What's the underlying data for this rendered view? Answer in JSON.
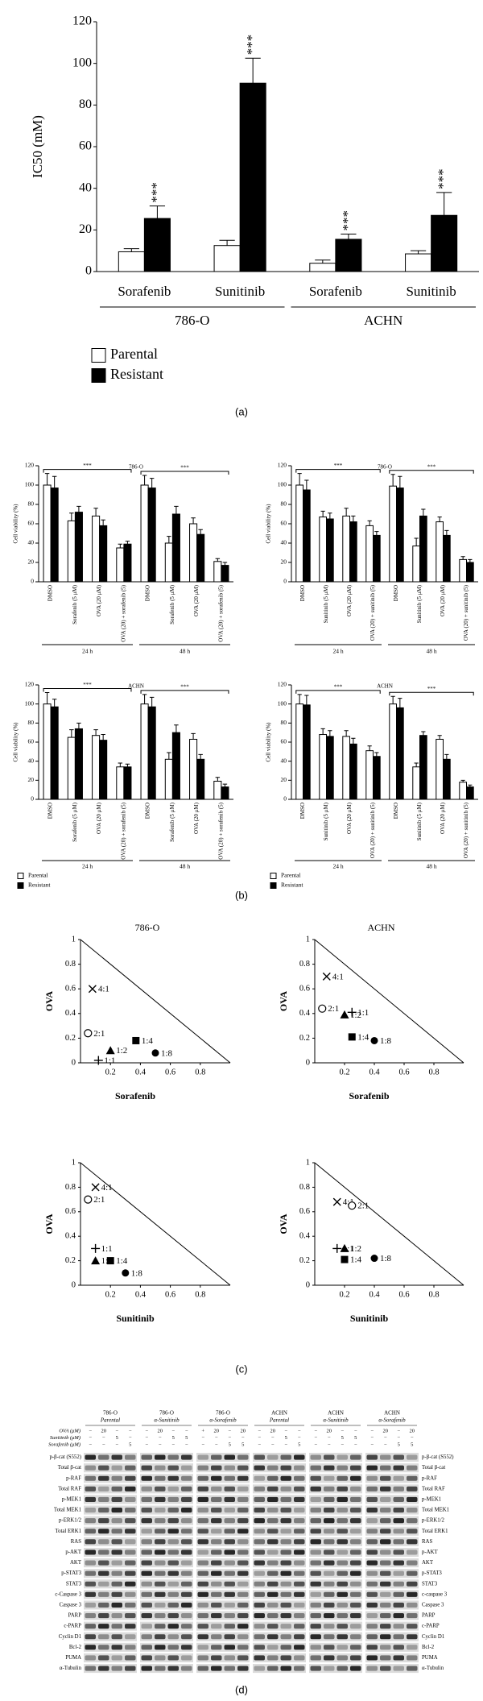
{
  "panel_labels": [
    "(a)",
    "(b)",
    "(c)",
    "(d)"
  ],
  "chart_data": [
    {
      "type": "bar",
      "ylabel": "IC50 (mM)",
      "ylim": [
        0,
        120
      ],
      "yticks": [
        0,
        20,
        40,
        60,
        80,
        100,
        120
      ],
      "categories": [
        "Sorafenib",
        "Sunitinib",
        "Sorafenib",
        "Sunitinib"
      ],
      "group_labels": [
        "786-O",
        "ACHN"
      ],
      "legend": true,
      "series": [
        {
          "name": "Parental",
          "color": "#ffffff",
          "values": [
            9.5,
            12.5,
            4,
            8.5
          ],
          "errors": [
            1.5,
            2.5,
            1.5,
            1.5
          ]
        },
        {
          "name": "Resistant",
          "color": "#000000",
          "values": [
            25.5,
            90.5,
            15.5,
            27
          ],
          "errors": [
            6,
            12,
            2.5,
            11
          ],
          "significance": [
            "***",
            "***",
            "***",
            "***"
          ]
        }
      ]
    },
    {
      "type": "bar",
      "title": "786-O",
      "ylabel": "Cell viability (%)",
      "ylim": [
        0,
        120
      ],
      "yticks": [
        0,
        20,
        40,
        60,
        80,
        100,
        120
      ],
      "categories": [
        "DMSO",
        "Sorafenib (5 μM)",
        "OVA (20 μM)",
        "OVA (20) + sorafenib (5)",
        "DMSO",
        "Sorafenib (5 μM)",
        "OVA (20 μM)",
        "OVA (20) + sorafenib (5)"
      ],
      "group_labels": [
        "24 h",
        "48 h"
      ],
      "comparisons": [
        "***",
        "***"
      ],
      "legend": false,
      "series": [
        {
          "name": "Parental",
          "color": "#ffffff",
          "values": [
            100,
            63,
            68,
            35,
            100,
            40,
            60,
            21
          ],
          "errors": [
            12,
            8,
            8,
            4,
            10,
            7,
            6,
            3
          ]
        },
        {
          "name": "Resistant",
          "color": "#000000",
          "values": [
            97,
            72,
            58,
            39,
            97,
            70,
            49,
            17
          ],
          "errors": [
            12,
            6,
            6,
            3,
            10,
            8,
            5,
            3
          ]
        }
      ]
    },
    {
      "type": "bar",
      "title": "786-O",
      "ylabel": "Cell viability (%)",
      "ylim": [
        0,
        120
      ],
      "yticks": [
        0,
        20,
        40,
        60,
        80,
        100,
        120
      ],
      "categories": [
        "DMSO",
        "Sunitinib (5 μM)",
        "OVA (20 μM)",
        "OVA (20) + sunitinib (5)",
        "DMSO",
        "Sunitinib (5 μM)",
        "OVA (20 μM)",
        "OVA (20) + sunitinib (5)"
      ],
      "group_labels": [
        "24 h",
        "48 h"
      ],
      "comparisons": [
        "***",
        "***"
      ],
      "legend": false,
      "series": [
        {
          "name": "Parental",
          "color": "#ffffff",
          "values": [
            100,
            67,
            68,
            58,
            99,
            37,
            62,
            23
          ],
          "errors": [
            12,
            6,
            8,
            5,
            12,
            8,
            5,
            3
          ]
        },
        {
          "name": "Resistant",
          "color": "#000000",
          "values": [
            95,
            65,
            62,
            48,
            97,
            68,
            48,
            20
          ],
          "errors": [
            10,
            6,
            6,
            4,
            12,
            7,
            5,
            3
          ]
        }
      ]
    },
    {
      "type": "bar",
      "title": "ACHN",
      "ylabel": "Cell viability (%)",
      "ylim": [
        0,
        120
      ],
      "yticks": [
        0,
        20,
        40,
        60,
        80,
        100,
        120
      ],
      "categories": [
        "DMSO",
        "Sorafenib (5 μM)",
        "OVA (20 μM)",
        "OVA (20) + sorafenib (5)",
        "DMSO",
        "Sorafenib (5 μM)",
        "OVA (20 μM)",
        "OVA (20) + sorafenib (5)"
      ],
      "group_labels": [
        "24 h",
        "48 h"
      ],
      "comparisons": [
        "***",
        "***"
      ],
      "legend": true,
      "series": [
        {
          "name": "Parental",
          "color": "#ffffff",
          "values": [
            100,
            65,
            67,
            34,
            100,
            42,
            63,
            19
          ],
          "errors": [
            12,
            8,
            6,
            4,
            10,
            7,
            6,
            4
          ]
        },
        {
          "name": "Resistant",
          "color": "#000000",
          "values": [
            97,
            74,
            62,
            34,
            97,
            70,
            42,
            13
          ],
          "errors": [
            8,
            6,
            6,
            3,
            10,
            8,
            5,
            3
          ]
        }
      ]
    },
    {
      "type": "bar",
      "title": "ACHN",
      "ylabel": "Cell viability (%)",
      "ylim": [
        0,
        120
      ],
      "yticks": [
        0,
        20,
        40,
        60,
        80,
        100,
        120
      ],
      "categories": [
        "DMSO",
        "Sunitinib (5 μM)",
        "OVA (20 μM)",
        "OVA (20) + sunitinib (5)",
        "DMSO",
        "Sunitinib (5 μM)",
        "OVA (20 μM)",
        "OVA (20) + sunitinib (5)"
      ],
      "group_labels": [
        "24 h",
        "48 h"
      ],
      "comparisons": [
        "***",
        "***"
      ],
      "legend": true,
      "series": [
        {
          "name": "Parental",
          "color": "#ffffff",
          "values": [
            100,
            68,
            66,
            51,
            100,
            34,
            63,
            18
          ],
          "errors": [
            10,
            6,
            6,
            5,
            8,
            4,
            4,
            2
          ]
        },
        {
          "name": "Resistant",
          "color": "#000000",
          "values": [
            99,
            66,
            58,
            45,
            96,
            67,
            42,
            13
          ],
          "errors": [
            10,
            6,
            6,
            4,
            10,
            4,
            5,
            2
          ]
        }
      ]
    },
    {
      "type": "scatter",
      "title": "786-O",
      "xlabel": "Sorafenib",
      "ylabel": "OVA",
      "xlim": [
        0,
        1
      ],
      "ylim": [
        0,
        1
      ],
      "xticks": [
        0.2,
        0.4,
        0.6,
        0.8
      ],
      "yticks": [
        0,
        0.2,
        0.4,
        0.6,
        0.8,
        1
      ],
      "x": [
        0.08,
        0.05,
        0.12,
        0.2,
        0.37,
        0.5
      ],
      "y": [
        0.6,
        0.24,
        0.02,
        0.1,
        0.18,
        0.08
      ],
      "point_labels": [
        "4:1",
        "2:1",
        "1:1",
        "1:2",
        "1:4",
        "1:8"
      ],
      "markers": [
        "x",
        "circle-open",
        "plus",
        "triangle",
        "square",
        "circle"
      ]
    },
    {
      "type": "scatter",
      "title": "ACHN",
      "xlabel": "Sorafenib",
      "ylabel": "OVA",
      "xlim": [
        0,
        1
      ],
      "ylim": [
        0,
        1
      ],
      "xticks": [
        0.2,
        0.4,
        0.6,
        0.8
      ],
      "yticks": [
        0,
        0.2,
        0.4,
        0.6,
        0.8,
        1
      ],
      "x": [
        0.08,
        0.05,
        0.25,
        0.2,
        0.25,
        0.4
      ],
      "y": [
        0.7,
        0.44,
        0.41,
        0.39,
        0.21,
        0.18
      ],
      "point_labels": [
        "4:1",
        "2:1",
        "1:1",
        "1:2",
        "1:4",
        "1:8"
      ],
      "markers": [
        "x",
        "circle-open",
        "plus",
        "triangle",
        "square",
        "circle"
      ]
    },
    {
      "type": "scatter",
      "xlabel": "Sunitinib",
      "ylabel": "OVA",
      "xlim": [
        0,
        1
      ],
      "ylim": [
        0,
        1
      ],
      "xticks": [
        0.2,
        0.4,
        0.6,
        0.8
      ],
      "yticks": [
        0,
        0.2,
        0.4,
        0.6,
        0.8,
        1
      ],
      "x": [
        0.1,
        0.05,
        0.1,
        0.1,
        0.2,
        0.3
      ],
      "y": [
        0.8,
        0.7,
        0.3,
        0.2,
        0.2,
        0.1
      ],
      "point_labels": [
        "4:1",
        "2:1",
        "1:1",
        "1:2",
        "1:4",
        "1:8"
      ],
      "markers": [
        "x",
        "circle-open",
        "plus",
        "triangle",
        "square",
        "circle"
      ]
    },
    {
      "type": "scatter",
      "xlabel": "Sunitinib",
      "ylabel": "OVA",
      "xlim": [
        0,
        1
      ],
      "ylim": [
        0,
        1
      ],
      "xticks": [
        0.2,
        0.4,
        0.6,
        0.8
      ],
      "yticks": [
        0,
        0.2,
        0.4,
        0.6,
        0.8,
        1
      ],
      "x": [
        0.15,
        0.25,
        0.15,
        0.2,
        0.2,
        0.4
      ],
      "y": [
        0.68,
        0.65,
        0.3,
        0.3,
        0.21,
        0.22
      ],
      "point_labels": [
        "4:1",
        "2:1",
        "1:1",
        "1:2",
        "1:4",
        "1:8"
      ],
      "markers": [
        "x",
        "circle-open",
        "plus",
        "triangle",
        "square",
        "circle"
      ]
    }
  ],
  "western_blot": {
    "groups": [
      {
        "cell": "786-O",
        "line": "Parental"
      },
      {
        "cell": "786-O",
        "line": "α-Sunitinib"
      },
      {
        "cell": "786-O",
        "line": "α-Sorafenib"
      },
      {
        "cell": "ACHN",
        "line": "Parental"
      },
      {
        "cell": "ACHN",
        "line": "α-Sunitinib"
      },
      {
        "cell": "ACHN",
        "line": "α-Sorafenib"
      }
    ],
    "treatments": [
      {
        "label": "OVA (μM)",
        "lanes": [
          [
            "−",
            "20",
            "−",
            "−"
          ],
          [
            "−",
            "20",
            "−",
            "−"
          ],
          [
            "+",
            "20",
            "−",
            "20"
          ],
          [
            "−",
            "20",
            "−",
            "−"
          ],
          [
            "−",
            "20",
            "−",
            "−"
          ],
          [
            "−",
            "20",
            "−",
            "20"
          ]
        ]
      },
      {
        "label": "Sunitinib (μM)",
        "lanes": [
          [
            "−",
            "−",
            "5",
            "−"
          ],
          [
            "−",
            "−",
            "5",
            "5"
          ],
          [
            "−",
            "−",
            "−",
            "−"
          ],
          [
            "−",
            "−",
            "5",
            "−"
          ],
          [
            "−",
            "−",
            "5",
            "5"
          ],
          [
            "−",
            "−",
            "−",
            "−"
          ]
        ]
      },
      {
        "label": "Sorafenib (μM)",
        "lanes": [
          [
            "−",
            "−",
            "−",
            "5"
          ],
          [
            "−",
            "−",
            "−",
            "−"
          ],
          [
            "−",
            "−",
            "5",
            "5"
          ],
          [
            "−",
            "−",
            "−",
            "5"
          ],
          [
            "−",
            "−",
            "−",
            "−"
          ],
          [
            "−",
            "−",
            "5",
            "5"
          ]
        ]
      }
    ],
    "left_labels": [
      "p-β-cat (S552)",
      "Total β-cat",
      "p-RAF",
      "Total RAF",
      "p-MEK1",
      "Total MEK1",
      "p-ERK1/2",
      "Total ERK1",
      "RAS",
      "p-AKT",
      "AKT",
      "p-STAT3",
      "STAT3",
      "c-Caspase 3",
      "Caspase 3",
      "PARP",
      "c-PARP",
      "Cyclin D1",
      "Bcl-2",
      "PUMA",
      "α-Tubulin"
    ],
    "right_labels": [
      "p-β-cat (S552)",
      "Total β-cat",
      "p-RAF",
      "Total RAF",
      "p-MEK1",
      "Total MEK1",
      "p-ERK1/2",
      "Total ERK1",
      "RAS",
      "p-AKT",
      "AKT",
      "p-STAT3",
      "STAT3",
      "c-caspase 3",
      "Caspase 3",
      "PARP",
      "c-PARP",
      "Cyclin D1",
      "Bcl-2",
      "PUMA",
      "α-Tubulin"
    ]
  }
}
